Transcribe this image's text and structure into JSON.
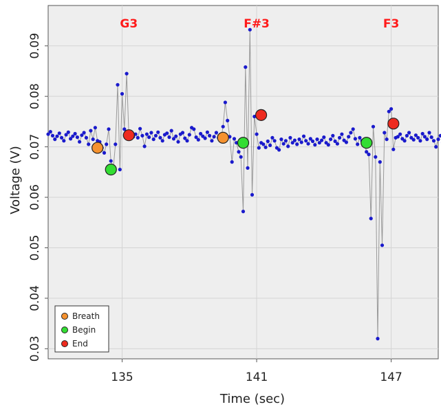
{
  "chart_data": {
    "type": "scatter",
    "xlabel": "Time (sec)",
    "ylabel": "Voltage (V)",
    "xlim": [
      131.7,
      149.1
    ],
    "ylim": [
      0.028,
      0.098
    ],
    "xticks": [
      135,
      141,
      147
    ],
    "xtick_labels": [
      "135",
      "141",
      "147"
    ],
    "yticks": [
      0.03,
      0.04,
      0.05,
      0.06,
      0.07,
      0.08,
      0.09
    ],
    "ytick_labels": [
      "0.03",
      "0.04",
      "0.05",
      "0.06",
      "0.07",
      "0.08",
      "0.09"
    ],
    "grid": true,
    "legend_position": "bottom-left",
    "colors": {
      "signal_point": "#1a1acc",
      "signal_line": "#999999",
      "breath": "#f5922f",
      "begin": "#33dd33",
      "end": "#ee2b1f",
      "note_text": "#ff1a1a",
      "plot_background": "#eeeeee"
    },
    "annotations": [
      {
        "text": "G3",
        "x": 135.3
      },
      {
        "text": "F#3",
        "x": 141.0
      },
      {
        "text": "F3",
        "x": 147.0
      }
    ],
    "series": [
      {
        "name": "Breath",
        "points": [
          [
            133.9,
            0.0698
          ],
          [
            139.5,
            0.0718
          ]
        ]
      },
      {
        "name": "Begin",
        "points": [
          [
            134.5,
            0.0655
          ],
          [
            140.4,
            0.0708
          ],
          [
            145.9,
            0.0708
          ]
        ]
      },
      {
        "name": "End",
        "points": [
          [
            135.3,
            0.0723
          ],
          [
            141.2,
            0.0763
          ],
          [
            147.1,
            0.0746
          ]
        ]
      }
    ],
    "signal": {
      "x_start": 131.7,
      "x_step": 0.1,
      "values": [
        0.0725,
        0.073,
        0.0722,
        0.0715,
        0.0721,
        0.0727,
        0.0718,
        0.0712,
        0.0724,
        0.0729,
        0.0716,
        0.0721,
        0.0726,
        0.0719,
        0.071,
        0.0723,
        0.0728,
        0.0718,
        0.0705,
        0.0732,
        0.0715,
        0.0738,
        0.0712,
        0.071,
        0.0698,
        0.0688,
        0.0705,
        0.0735,
        0.0672,
        0.0655,
        0.0705,
        0.0823,
        0.0655,
        0.0805,
        0.0735,
        0.0845,
        0.0723,
        0.0718,
        0.072,
        0.0725,
        0.0718,
        0.0736,
        0.0722,
        0.0701,
        0.0725,
        0.0719,
        0.0728,
        0.0715,
        0.0722,
        0.0729,
        0.0718,
        0.0712,
        0.0724,
        0.0727,
        0.0719,
        0.0732,
        0.0716,
        0.0721,
        0.071,
        0.0725,
        0.0728,
        0.0717,
        0.0712,
        0.0724,
        0.0738,
        0.0735,
        0.0719,
        0.0714,
        0.0726,
        0.0721,
        0.0717,
        0.0729,
        0.0722,
        0.0712,
        0.072,
        0.0728,
        0.0718,
        0.0712,
        0.074,
        0.0788,
        0.0752,
        0.072,
        0.067,
        0.0716,
        0.0708,
        0.069,
        0.068,
        0.0572,
        0.0858,
        0.0658,
        0.0932,
        0.0605,
        0.076,
        0.0725,
        0.0698,
        0.0708,
        0.0705,
        0.0699,
        0.0711,
        0.0703,
        0.0718,
        0.0712,
        0.0698,
        0.0694,
        0.0715,
        0.0706,
        0.0712,
        0.0701,
        0.0718,
        0.0708,
        0.0713,
        0.0705,
        0.0715,
        0.0709,
        0.0721,
        0.0712,
        0.0706,
        0.0716,
        0.0711,
        0.0704,
        0.0715,
        0.0708,
        0.0713,
        0.0719,
        0.0708,
        0.0704,
        0.0715,
        0.0722,
        0.0711,
        0.0706,
        0.0718,
        0.0725,
        0.0713,
        0.0709,
        0.072,
        0.0728,
        0.0735,
        0.0716,
        0.0705,
        0.0718,
        0.0712,
        0.0708,
        0.069,
        0.0685,
        0.0558,
        0.074,
        0.068,
        0.032,
        0.067,
        0.0505,
        0.0728,
        0.0715,
        0.077,
        0.0775,
        0.0695,
        0.0718,
        0.072,
        0.0725,
        0.0716,
        0.0712,
        0.0722,
        0.0728,
        0.0718,
        0.0714,
        0.0723,
        0.0718,
        0.0712,
        0.0726,
        0.072,
        0.0715,
        0.0728,
        0.0719,
        0.0712,
        0.07,
        0.0715,
        0.0722,
        0.0708,
        0.0712
      ]
    }
  }
}
